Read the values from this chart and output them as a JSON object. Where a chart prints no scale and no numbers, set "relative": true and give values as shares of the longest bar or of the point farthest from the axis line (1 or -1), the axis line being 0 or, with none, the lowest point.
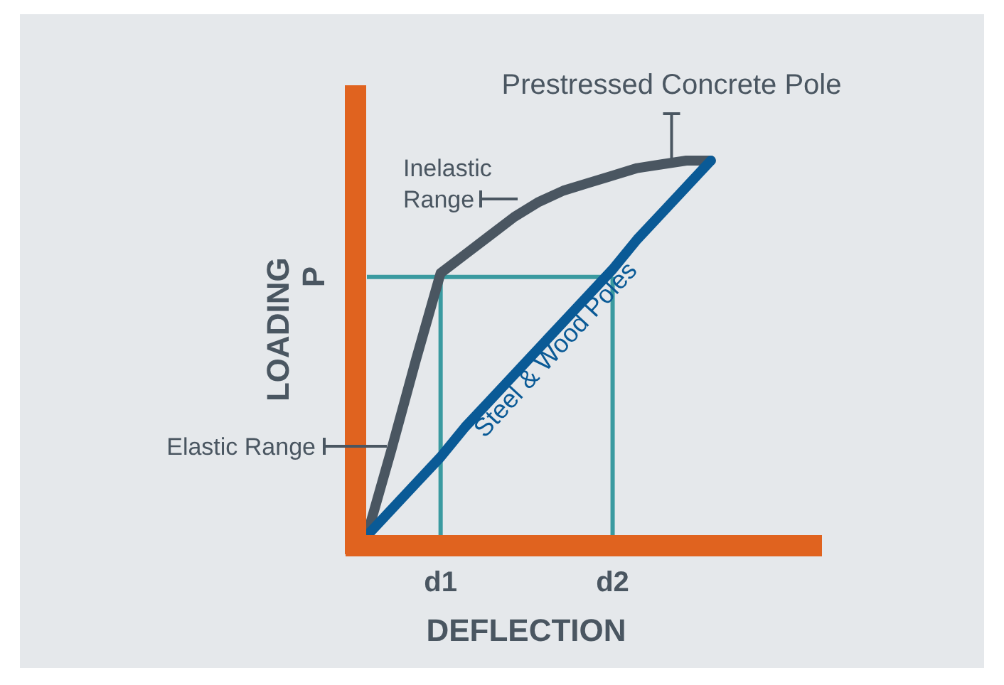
{
  "chart_data": {
    "type": "line",
    "relative": true,
    "xlabel": "DEFLECTION",
    "ylabel": "LOADING",
    "categories": [
      null,
      null,
      null,
      "d1",
      null,
      null,
      null,
      null,
      null,
      null,
      "d2",
      null,
      null,
      null,
      null,
      null,
      null,
      null,
      null
    ],
    "grid": false,
    "legend": false,
    "marker": "none",
    "line_style": "solid",
    "series": [
      {
        "name": "Prestressed Concrete Pole",
        "color": "#4a5661",
        "values": [
          0,
          0.23,
          0.47,
          0.7,
          0.75,
          0.8,
          0.85,
          0.89,
          0.92,
          0.94,
          0.96,
          0.98,
          0.99,
          1,
          1,
          null,
          null,
          null,
          null
        ]
      },
      {
        "name": "Steel & Wood Poles",
        "color": "#0a5a96",
        "values": [
          0,
          0.07,
          0.14,
          0.21,
          0.29,
          0.36,
          0.43,
          0.5,
          0.57,
          0.64,
          0.71,
          0.79,
          0.86,
          0.93,
          1,
          null,
          null,
          null,
          null
        ]
      }
    ],
    "ref_lines": [
      {
        "axis": "y",
        "value": 0.69,
        "label": "P",
        "color": "#3a9aa0"
      },
      {
        "axis": "x",
        "value": "d1",
        "label": null,
        "color": "#3a9aa0"
      },
      {
        "axis": "x",
        "value": "d2",
        "label": null,
        "color": "#3a9aa0"
      }
    ],
    "annotations": [
      "Inelastic Range",
      "Elastic Range"
    ]
  }
}
